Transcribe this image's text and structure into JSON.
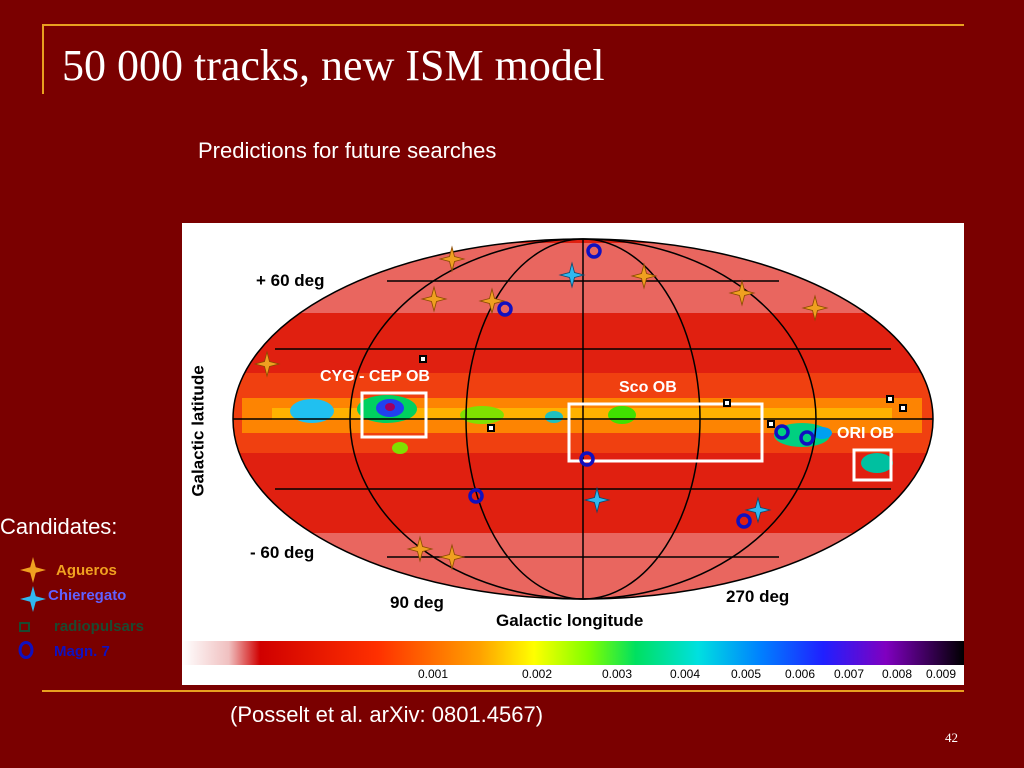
{
  "slide": {
    "title": "50 000 tracks, new ISM model",
    "subtitle": "Predictions for future searches",
    "citation": "(Posselt et al. arXiv: 0801.4567)",
    "page_number": "42"
  },
  "sky_map": {
    "lat_top": "+ 60 deg",
    "lat_bottom": "- 60 deg",
    "y_axis_label": "Galactic latitude",
    "x_axis_label": "Galactic longitude",
    "lon_left": "90 deg",
    "lon_right": "270 deg",
    "regions": [
      "CYG - CEP OB",
      "Sco OB",
      "ORI OB"
    ],
    "colorbar_ticks": [
      "0.001",
      "0.002",
      "0.003",
      "0.004",
      "0.005",
      "0.006",
      "0.007",
      "0.008",
      "0.009"
    ]
  },
  "legend": {
    "heading": "Candidates:",
    "items": [
      {
        "label": "Agueros",
        "icon": "orange-star-icon",
        "color": "#f0a020"
      },
      {
        "label": "Chieregato",
        "icon": "cyan-star-icon",
        "color": "#30b8f0"
      },
      {
        "label": "radiopulsars",
        "icon": "square-icon",
        "color": "#1a4a30"
      },
      {
        "label": "Magn. 7",
        "icon": "ring-icon",
        "color": "#1010c0"
      }
    ]
  },
  "colors": {
    "background": "#7a0000",
    "accent_line": "#e8a020"
  }
}
